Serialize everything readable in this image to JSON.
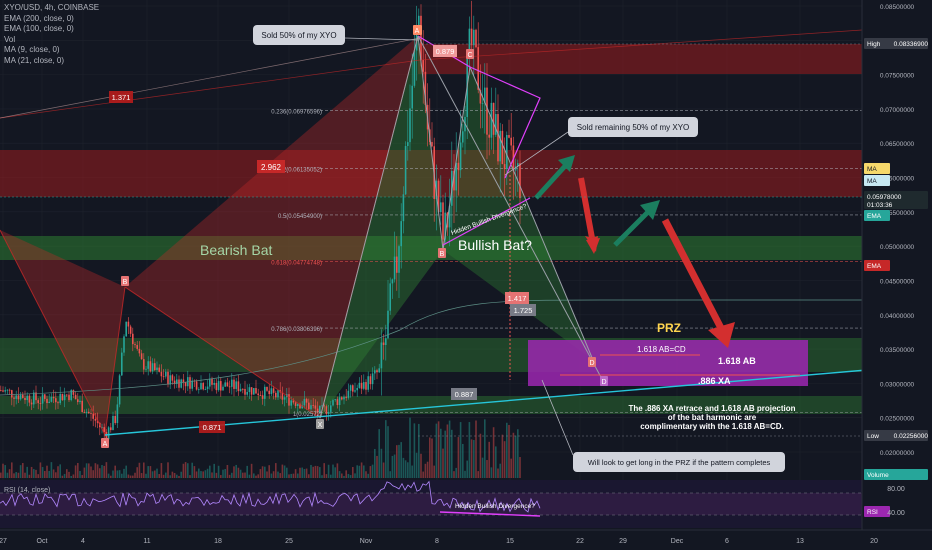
{
  "header": {
    "symbol_line": "XYO/USD, 4h, COINBASE",
    "indicators": [
      "EMA (200, close, 0)",
      "EMA (100, close, 0)",
      "Vol",
      "MA (9, close, 0)",
      "MA (21, close, 0)"
    ]
  },
  "price_axis": {
    "ticks": [
      "0.08500000",
      "0.08000000",
      "0.07500000",
      "0.07000000",
      "0.06500000",
      "0.06000000",
      "0.05500000",
      "0.05000000",
      "0.04500000",
      "0.04000000",
      "0.03500000",
      "0.03000000",
      "0.02500000",
      "0.02000000"
    ],
    "badges": [
      {
        "label": "High",
        "value": "0.08336900",
        "color": "#363a45"
      },
      {
        "label": "MA",
        "color": "#f6d86b",
        "text_color": "#131722"
      },
      {
        "label": "MA",
        "color": "#c7e8f3",
        "text_color": "#131722"
      },
      {
        "label": "0.05978000",
        "sub": "01:03:36",
        "color": "#1f2a2e"
      },
      {
        "label": "EMA",
        "color": "#26a69a"
      },
      {
        "label": "EMA",
        "color": "#c62828"
      },
      {
        "label": "Low",
        "value": "0.02256000",
        "color": "#363a45"
      },
      {
        "label": "Volume",
        "color": "#26a69a"
      },
      {
        "label": "RSI",
        "color": "#9c27b0"
      }
    ]
  },
  "time_axis": {
    "ticks": [
      "27",
      "Oct",
      "4",
      "11",
      "18",
      "25",
      "Nov",
      "8",
      "15",
      "22",
      "29",
      "Dec",
      "6",
      "13",
      "20"
    ]
  },
  "fib_levels": [
    {
      "ratio": "0.236(0.06976596)",
      "color": "#b2b5be"
    },
    {
      "ratio": "0.382(0.06135052)",
      "color": "#b2b5be"
    },
    {
      "ratio": "0.5(0.05454900)",
      "color": "#b2b5be"
    },
    {
      "ratio": "0.618(0.04774748)",
      "color": "#ef5350"
    },
    {
      "ratio": "0.786(0.03806396)",
      "color": "#b2b5be"
    },
    {
      "ratio": "1(0.02572)",
      "color": "#b2b5be"
    }
  ],
  "pattern_points": [
    "X",
    "A",
    "B",
    "C",
    "D"
  ],
  "ratio_labels": [
    "1.371",
    "2.962",
    "0.879",
    "0.871",
    "1.417",
    "1.725",
    "0.887"
  ],
  "annotations": {
    "sold_50": "Sold 50% of my XYO",
    "sold_remaining": "Sold remaining 50% of my XYO",
    "bearish_bat": "Bearish Bat",
    "bullish_bat": "Bullish Bat?",
    "hidden_div_price": "Hidden Bullish Divergence?",
    "prz": "PRZ",
    "ab_cd": "1.618 AB=CD",
    "ab": "1.618 AB",
    "xa": ".886 XA",
    "explanation": [
      "The .886 XA retrace and 1.618 AB projection",
      "of the bat harmonic are",
      "complimentary with the 1.618 AB=CD."
    ],
    "will_look_long": "Will look to get long in the PRZ if the pattern completes",
    "rsi_div": "Hidden Bullish Divergence?"
  },
  "rsi": {
    "label": "RSI (14, close)",
    "ticks": [
      "80.00",
      "40.00"
    ]
  },
  "chart_data": {
    "type": "line",
    "title": "XYO/USD, 4h, COINBASE",
    "xlabel": "",
    "ylabel": "",
    "ylim": [
      0.0195,
      0.0875
    ],
    "harmonic_points": [
      {
        "label": "X",
        "x": "2020-10-08",
        "y": 0.0226
      },
      {
        "label": "A",
        "x": "2020-11-05",
        "y": 0.0834
      },
      {
        "label": "B",
        "x": "2020-11-08",
        "y": 0.0505
      },
      {
        "label": "C",
        "x": "2020-11-10",
        "y": 0.0795
      },
      {
        "label": "D",
        "x": "2020-11-24",
        "y": 0.0327
      }
    ],
    "prz_zone": {
      "from": "2020-11-22",
      "to": "2020-12-15",
      "low": 0.03,
      "high": 0.0375
    },
    "horizontal_levels": [
      0.083369,
      0.05978,
      0.02256
    ],
    "grid": true,
    "legend": "top-left"
  }
}
